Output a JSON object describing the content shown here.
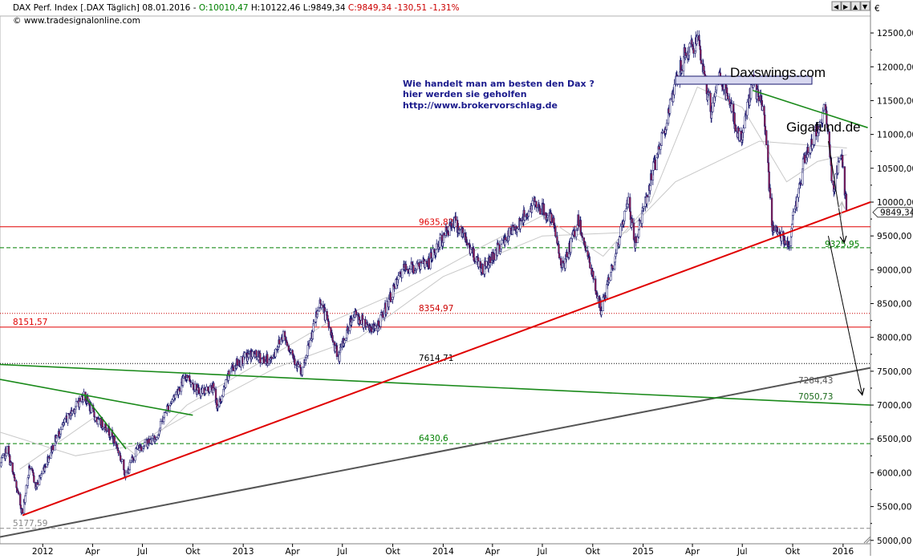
{
  "header": {
    "parts": [
      {
        "text": "DAX Perf. Index [.DAX  Täglich] 08.01.2016 - ",
        "color": "#000000"
      },
      {
        "text": "O:10010,47",
        "color": "#008000"
      },
      {
        "text": " H:10122,46 L:9849,34 ",
        "color": "#000000"
      },
      {
        "text": "C:9849,34 -130,51 -1,31%",
        "color": "#cc0000"
      }
    ],
    "source": "© www.tradesignalonline.com",
    "currency": "€",
    "last_price_tag": "9849,34"
  },
  "promo": {
    "lines": [
      "Wie handelt man am besten  den Dax ?",
      "hier werden sie geholfen",
      "http://www.brokervorschlag.de"
    ],
    "brand1": "Daxswings.com",
    "brand2": "Gigafund.de"
  },
  "window_buttons": [
    "◀",
    "▶",
    "▲",
    "▼"
  ],
  "chart_data": {
    "type": "candlestick",
    "title": "DAX Perf. Index [.DAX Täglich] 08.01.2016",
    "y_axis": {
      "range": [
        4950,
        12750
      ],
      "ticks": [
        5000,
        5500,
        6000,
        6500,
        7000,
        7500,
        8000,
        8500,
        9000,
        9500,
        10000,
        10500,
        11000,
        11500,
        12000,
        12500
      ],
      "tick_labels": [
        "5000,00",
        "5500,00",
        "6000,00",
        "6500,00",
        "7000,00",
        "7500,00",
        "8000,00",
        "8500,00",
        "9000,00",
        "9500,00",
        "10000,00",
        "10500,00",
        "11000,00",
        "11500,00",
        "12000,00",
        "12500,00"
      ],
      "grid": false,
      "position": "right"
    },
    "x_axis": {
      "range": [
        "2011-10-15",
        "2016-02-20"
      ],
      "ticks": [
        {
          "date": "2012-01-01",
          "label": "2012"
        },
        {
          "date": "2012-04-01",
          "label": "Apr"
        },
        {
          "date": "2012-07-01",
          "label": "Jul"
        },
        {
          "date": "2012-10-01",
          "label": "Okt"
        },
        {
          "date": "2013-01-01",
          "label": "2013"
        },
        {
          "date": "2013-04-01",
          "label": "Apr"
        },
        {
          "date": "2013-07-01",
          "label": "Jul"
        },
        {
          "date": "2013-10-01",
          "label": "Okt"
        },
        {
          "date": "2014-01-01",
          "label": "2014"
        },
        {
          "date": "2014-04-01",
          "label": "Apr"
        },
        {
          "date": "2014-07-01",
          "label": "Jul"
        },
        {
          "date": "2014-10-01",
          "label": "Okt"
        },
        {
          "date": "2015-01-01",
          "label": "2015"
        },
        {
          "date": "2015-04-01",
          "label": "Apr"
        },
        {
          "date": "2015-07-01",
          "label": "Jul"
        },
        {
          "date": "2015-10-01",
          "label": "Okt"
        },
        {
          "date": "2016-01-01",
          "label": "2016"
        }
      ]
    },
    "price_path": [
      [
        "2011-10-15",
        6100
      ],
      [
        "2011-10-28",
        6350
      ],
      [
        "2011-11-10",
        5900
      ],
      [
        "2011-11-25",
        5400
      ],
      [
        "2011-12-08",
        6100
      ],
      [
        "2011-12-20",
        5800
      ],
      [
        "2012-01-10",
        6200
      ],
      [
        "2012-01-25",
        6500
      ],
      [
        "2012-02-15",
        6800
      ],
      [
        "2012-03-16",
        7150
      ],
      [
        "2012-04-10",
        6750
      ],
      [
        "2012-04-25",
        6700
      ],
      [
        "2012-05-15",
        6400
      ],
      [
        "2012-06-01",
        5950
      ],
      [
        "2012-06-20",
        6350
      ],
      [
        "2012-07-10",
        6450
      ],
      [
        "2012-07-25",
        6500
      ],
      [
        "2012-08-15",
        6950
      ],
      [
        "2012-09-20",
        7450
      ],
      [
        "2012-10-10",
        7200
      ],
      [
        "2012-11-07",
        7250
      ],
      [
        "2012-11-16",
        6950
      ],
      [
        "2012-12-10",
        7550
      ],
      [
        "2013-01-15",
        7750
      ],
      [
        "2013-02-20",
        7650
      ],
      [
        "2013-03-15",
        8050
      ],
      [
        "2013-04-18",
        7450
      ],
      [
        "2013-05-22",
        8550
      ],
      [
        "2013-06-24",
        7700
      ],
      [
        "2013-07-20",
        8350
      ],
      [
        "2013-08-30",
        8100
      ],
      [
        "2013-10-20",
        9000
      ],
      [
        "2013-12-05",
        9100
      ],
      [
        "2014-01-20",
        9750
      ],
      [
        "2014-03-14",
        9000
      ],
      [
        "2014-04-15",
        9350
      ],
      [
        "2014-06-20",
        10000
      ],
      [
        "2014-07-20",
        9700
      ],
      [
        "2014-08-08",
        9000
      ],
      [
        "2014-09-05",
        9750
      ],
      [
        "2014-10-16",
        8400
      ],
      [
        "2014-11-20",
        9500
      ],
      [
        "2014-12-05",
        10050
      ],
      [
        "2014-12-16",
        9350
      ],
      [
        "2015-01-25",
        10650
      ],
      [
        "2015-03-16",
        12150
      ],
      [
        "2015-04-10",
        12380
      ],
      [
        "2015-05-06",
        11300
      ],
      [
        "2015-05-20",
        11900
      ],
      [
        "2015-06-29",
        10900
      ],
      [
        "2015-07-20",
        11800
      ],
      [
        "2015-08-10",
        11300
      ],
      [
        "2015-08-24",
        9650
      ],
      [
        "2015-09-24",
        9400
      ],
      [
        "2015-10-20",
        10550
      ],
      [
        "2015-11-30",
        11400
      ],
      [
        "2015-12-14",
        10150
      ],
      [
        "2015-12-28",
        10800
      ],
      [
        "2016-01-08",
        9849
      ]
    ],
    "moving_averages": [
      {
        "points": [
          [
            "2011-10-15",
            6600
          ],
          [
            "2012-03-01",
            6250
          ],
          [
            "2012-06-15",
            6400
          ],
          [
            "2012-10-01",
            6900
          ],
          [
            "2013-03-01",
            7550
          ],
          [
            "2013-08-01",
            8000
          ],
          [
            "2014-01-01",
            8900
          ],
          [
            "2014-07-01",
            9500
          ],
          [
            "2014-12-01",
            9550
          ],
          [
            "2015-03-01",
            10300
          ],
          [
            "2015-08-01",
            10900
          ],
          [
            "2016-01-08",
            10800
          ]
        ]
      },
      {
        "points": [
          [
            "2011-11-20",
            6050
          ],
          [
            "2012-04-01",
            6800
          ],
          [
            "2012-06-20",
            6250
          ],
          [
            "2012-09-20",
            7000
          ],
          [
            "2013-01-15",
            7550
          ],
          [
            "2013-06-01",
            8200
          ],
          [
            "2013-10-20",
            8700
          ],
          [
            "2014-03-15",
            9350
          ],
          [
            "2014-07-01",
            9800
          ],
          [
            "2014-10-20",
            9200
          ],
          [
            "2015-01-15",
            10000
          ],
          [
            "2015-04-10",
            11700
          ],
          [
            "2015-07-01",
            11400
          ],
          [
            "2015-09-20",
            10300
          ],
          [
            "2015-11-15",
            10600
          ],
          [
            "2016-01-08",
            10700
          ]
        ]
      }
    ],
    "horizontal_levels": [
      {
        "value": 9635.82,
        "label": "9635,82",
        "color": "#e00000",
        "style": "solid"
      },
      {
        "value": 9325.95,
        "label": "9325,95",
        "color": "#008000",
        "style": "dashed"
      },
      {
        "value": 8354.97,
        "label": "8354,97",
        "color": "#cc0000",
        "style": "dotted"
      },
      {
        "value": 8151.57,
        "label": "8151,57",
        "color": "#e00000",
        "style": "solid"
      },
      {
        "value": 7614.71,
        "label": "7614,71",
        "color": "#000000",
        "style": "dotted"
      },
      {
        "value": 6430.6,
        "label": "6430,6",
        "color": "#008000",
        "style": "dashed"
      },
      {
        "value": 5177.59,
        "label": "5177,59",
        "color": "#888888",
        "style": "dashed"
      }
    ],
    "trend_lines": [
      {
        "from": [
          "2011-10-15",
          5050
        ],
        "to": [
          "2016-02-20",
          7550
        ],
        "color": "#555555",
        "label": "7284,43"
      },
      {
        "from": [
          "2011-10-15",
          7600
        ],
        "to": [
          "2016-02-20",
          7000
        ],
        "color": "#1a8a1a",
        "label": "7050,73"
      },
      {
        "from": [
          "2011-11-25",
          5370
        ],
        "to": [
          "2016-02-20",
          10000
        ],
        "color": "#e00000",
        "label": ""
      },
      {
        "from": [
          "2015-07-20",
          11650
        ],
        "to": [
          "2016-02-15",
          11100
        ],
        "color": "#1a8a1a",
        "label": ""
      },
      {
        "from": [
          "2011-10-15",
          7380
        ],
        "to": [
          "2012-10-01",
          6850
        ],
        "color": "#1a8a1a",
        "label": ""
      },
      {
        "from": [
          "2012-03-16",
          7150
        ],
        "to": [
          "2012-06-01",
          6350
        ],
        "color": "#1a8a1a",
        "label": ""
      }
    ],
    "arrows": [
      {
        "from": [
          "2015-12-05",
          10900
        ],
        "to": [
          "2016-01-03",
          9400
        ],
        "color": "#000000"
      },
      {
        "from": [
          "2015-12-05",
          9500
        ],
        "to": [
          "2016-02-05",
          7150
        ],
        "color": "#000000"
      },
      {
        "from": [
          "2015-12-28",
          9750
        ],
        "to": [
          "2015-12-30",
          10000
        ],
        "color": "#bbbbbb"
      }
    ]
  },
  "colors": {
    "candle_up": "#ffffff",
    "candle_down": "#9b1b4e",
    "candle_outline": "#1a1a6e",
    "ma_color": "#c8c8c8"
  }
}
